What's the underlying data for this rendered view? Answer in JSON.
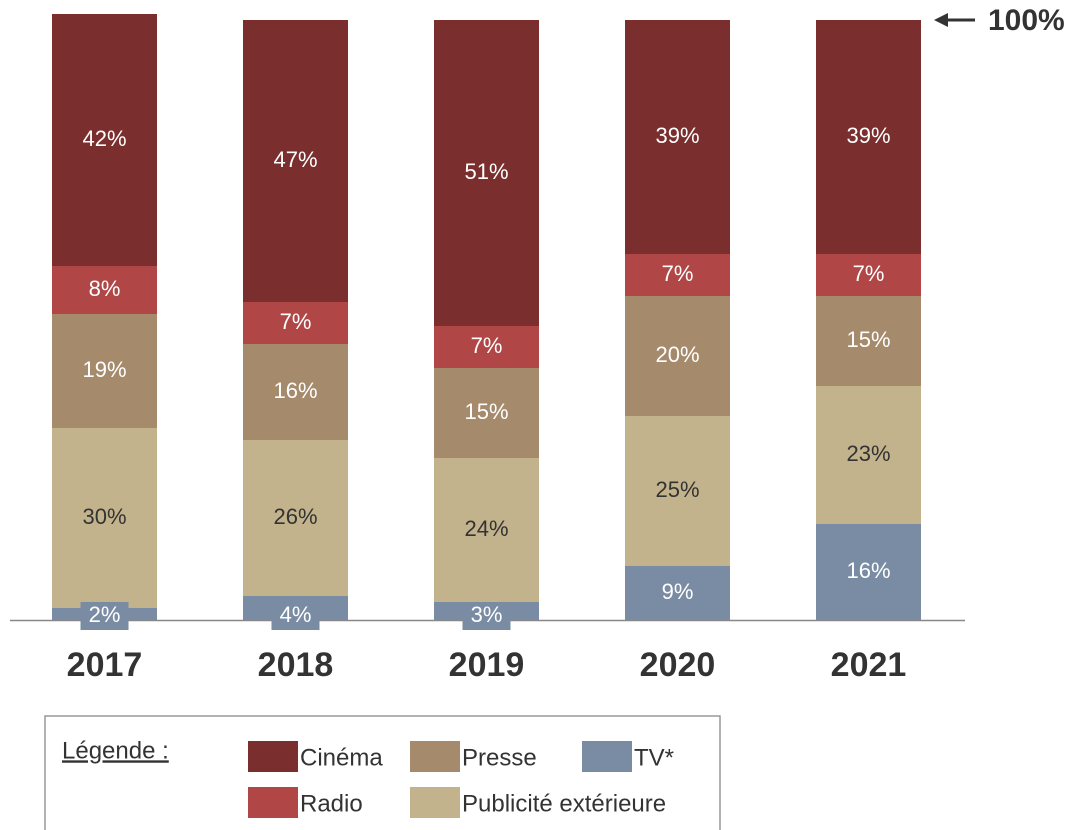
{
  "chart_data": {
    "type": "stacked_bar",
    "categories": [
      "2017",
      "2018",
      "2019",
      "2020",
      "2021"
    ],
    "series": [
      {
        "name": "TV*",
        "color": "#7a8ca3",
        "values": [
          2,
          4,
          3,
          9,
          16
        ],
        "value_labels": [
          "2%",
          "4%",
          "3%",
          "9%",
          "16%"
        ]
      },
      {
        "name": "Publicité extérieure",
        "color": "#c3b38d",
        "values": [
          30,
          26,
          24,
          25,
          23
        ],
        "value_labels": [
          "30%",
          "26%",
          "24%",
          "25%",
          "23%"
        ]
      },
      {
        "name": "Presse",
        "color": "#a58a6b",
        "values": [
          19,
          16,
          15,
          20,
          15
        ],
        "value_labels": [
          "19%",
          "16%",
          "15%",
          "20%",
          "15%"
        ]
      },
      {
        "name": "Radio",
        "color": "#b04646",
        "values": [
          8,
          7,
          7,
          7,
          7
        ],
        "value_labels": [
          "8%",
          "7%",
          "7%",
          "7%",
          "7%"
        ]
      },
      {
        "name": "Cinéma",
        "color": "#7b2e2e",
        "values": [
          42,
          47,
          51,
          39,
          39
        ],
        "value_labels": [
          "42%",
          "47%",
          "51%",
          "39%",
          "39%"
        ]
      }
    ],
    "ylim": [
      0,
      100
    ],
    "annotation": "100%",
    "legend_title": "Légende :"
  }
}
